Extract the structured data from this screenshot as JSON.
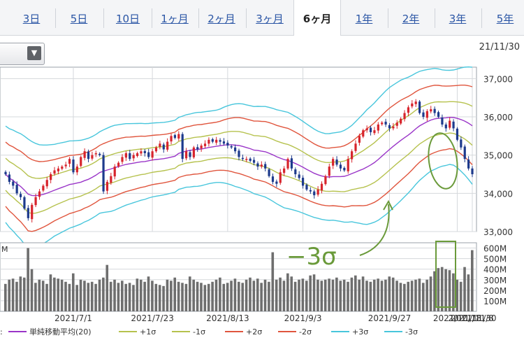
{
  "tabs": [
    {
      "label": "3日",
      "active": false
    },
    {
      "label": "5日",
      "active": false
    },
    {
      "label": "10日",
      "active": false
    },
    {
      "label": "1ヶ月",
      "active": false
    },
    {
      "label": "2ヶ月",
      "active": false
    },
    {
      "label": "3ヶ月",
      "active": false
    },
    {
      "label": "6ヶ月",
      "active": true
    },
    {
      "label": "1年",
      "active": false
    },
    {
      "label": "2年",
      "active": false
    },
    {
      "label": "3年",
      "active": false
    },
    {
      "label": "5年",
      "active": false
    }
  ],
  "dropdown": {
    "icon": "chevron-down-icon"
  },
  "date_label": "21/11/30",
  "annotation": {
    "text": "−3σ",
    "color": "#6a9a3a"
  },
  "chart_data": {
    "type": "candlestick",
    "price": {
      "ylim": [
        33000,
        37300
      ],
      "y_ticks": [
        "37,000",
        "36,000",
        "35,000",
        "34,000",
        "33,000"
      ],
      "y_tick_values": [
        37000,
        36000,
        35000,
        34000,
        33000
      ],
      "close": [
        34500,
        34300,
        34200,
        34000,
        33900,
        33600,
        33350,
        33700,
        33900,
        34050,
        34200,
        34350,
        34500,
        34600,
        34650,
        34700,
        34750,
        34900,
        34550,
        34700,
        34950,
        35100,
        34900,
        35000,
        35050,
        35000,
        34050,
        34300,
        34450,
        34700,
        34800,
        34950,
        35050,
        34900,
        35000,
        35050,
        35100,
        35050,
        34950,
        35100,
        35200,
        35300,
        35150,
        35350,
        35500,
        35450,
        35550,
        34900,
        35100,
        34950,
        35200,
        35150,
        35250,
        35300,
        35400,
        35350,
        35400,
        35350,
        35300,
        35250,
        35200,
        35100,
        34950,
        34900,
        34900,
        34850,
        34800,
        34700,
        34750,
        34650,
        34450,
        34300,
        34250,
        34550,
        34650,
        34900,
        34650,
        34500,
        34400,
        34200,
        34100,
        34050,
        33950,
        34100,
        34250,
        34450,
        34700,
        34900,
        34750,
        34650,
        34600,
        34900,
        35100,
        35300,
        35500,
        35650,
        35700,
        35600,
        35650,
        35800,
        35850,
        35800,
        35700,
        35750,
        35850,
        35950,
        36100,
        36250,
        36350,
        36400,
        36100,
        36000,
        36150,
        36200,
        36100,
        36000,
        35800,
        35700,
        35900,
        35700,
        35400,
        35200,
        34900,
        34650,
        34500
      ],
      "bands": {
        "colors": {
          "ma": "#9a35c8",
          "p1": "#b6c24e",
          "m1": "#b6c24e",
          "p2": "#e0553d",
          "m2": "#e0553d",
          "p3": "#48c6dc",
          "m3": "#48c6dc"
        },
        "sigma": [
          420,
          430,
          440,
          450,
          460,
          470,
          480,
          470,
          455,
          440,
          430,
          420,
          410,
          400,
          395,
          390,
          385,
          380,
          375,
          370,
          365,
          360,
          358,
          356,
          355,
          355,
          360,
          365,
          370,
          370,
          365,
          360,
          355,
          350,
          345,
          340,
          335,
          330,
          325,
          322,
          320,
          318,
          316,
          315,
          314,
          314,
          314,
          315,
          316,
          318,
          320,
          322,
          320,
          318,
          316,
          315,
          315,
          320,
          330,
          340,
          350,
          360,
          365,
          370,
          372,
          375,
          380,
          385,
          390,
          395,
          400,
          405,
          410,
          415,
          420,
          420,
          415,
          410,
          405,
          400,
          395,
          390,
          385,
          380,
          378,
          376,
          378,
          380,
          385,
          390,
          400,
          410,
          420,
          440,
          460,
          480,
          500,
          510,
          520,
          530,
          535,
          540,
          540,
          535,
          530,
          525,
          515,
          505,
          495,
          485,
          475,
          465,
          455,
          445,
          440,
          430,
          420,
          415,
          410,
          415,
          430,
          450,
          470,
          490,
          510
        ]
      }
    },
    "volume": {
      "ylim": [
        0,
        650
      ],
      "y_ticks": [
        "600M",
        "500M",
        "400M",
        "300M",
        "200M",
        "100M"
      ],
      "y_tick_values": [
        600,
        500,
        400,
        300,
        200,
        100
      ],
      "unit_label": "M",
      "values": [
        260,
        300,
        310,
        280,
        330,
        320,
        600,
        400,
        270,
        300,
        290,
        260,
        350,
        320,
        310,
        300,
        280,
        260,
        360,
        250,
        300,
        290,
        270,
        280,
        260,
        300,
        320,
        440,
        280,
        300,
        270,
        290,
        260,
        270,
        250,
        310,
        300,
        280,
        330,
        290,
        260,
        250,
        240,
        300,
        290,
        320,
        280,
        270,
        260,
        330,
        300,
        280,
        270,
        250,
        260,
        280,
        300,
        320,
        260,
        270,
        290,
        310,
        280,
        270,
        300,
        320,
        290,
        310,
        270,
        300,
        280,
        560,
        300,
        320,
        290,
        360,
        330,
        280,
        300,
        310,
        290,
        340,
        350,
        300,
        290,
        300,
        310,
        300,
        320,
        290,
        300,
        280,
        320,
        340,
        300,
        330,
        290,
        280,
        300,
        310,
        290,
        300,
        330,
        320,
        290,
        270,
        260,
        280,
        290,
        300,
        310,
        270,
        300,
        330,
        380,
        410,
        420,
        400,
        390,
        360,
        300,
        280,
        420,
        350,
        580
      ]
    },
    "x_ticks": [
      "2021/7/1",
      "2021/7/23",
      "2021/8/13",
      "2021/9/3",
      "2021/9/27",
      "2021/10/18",
      "2021/11/8",
      "2021/11/30"
    ],
    "x_tick_index": [
      18,
      39,
      59,
      79,
      102,
      120,
      140,
      160
    ],
    "legend": [
      {
        "label": "単純移動平均(20)",
        "color": "#9a35c8"
      },
      {
        "label": "+1σ",
        "color": "#b6c24e"
      },
      {
        "label": "-1σ",
        "color": "#b6c24e"
      },
      {
        "label": "+2σ",
        "color": "#e0553d"
      },
      {
        "label": "-2σ",
        "color": "#e0553d"
      },
      {
        "label": "+3σ",
        "color": "#48c6dc"
      },
      {
        "label": "-3σ",
        "color": "#48c6dc"
      }
    ],
    "legend_prefix": ":"
  }
}
